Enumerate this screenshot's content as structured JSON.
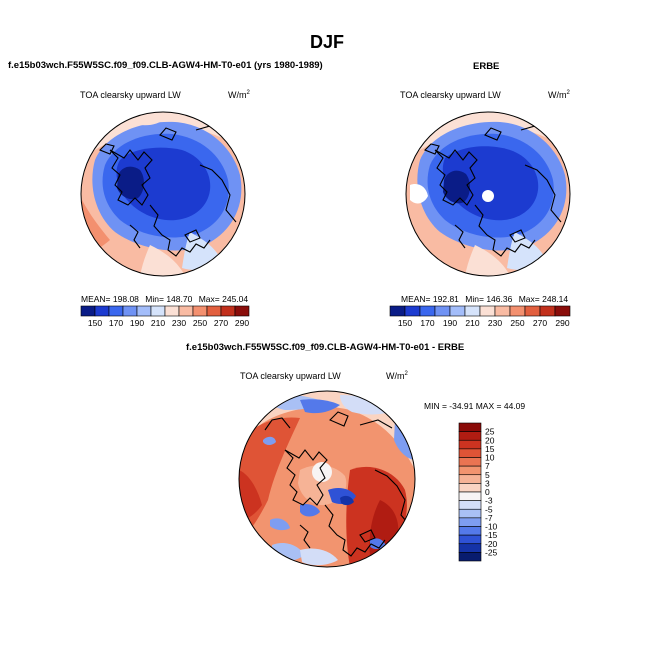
{
  "page": {
    "title": "DJF"
  },
  "chart_data": [
    {
      "type": "heatmap",
      "header": "f.e15b03wch.F55W5SC.f09_f09.CLB-AGW4-HM-T0-e01 (yrs 1980-1989)",
      "label_left": "TOA clearsky upward LW",
      "units": "W/m",
      "units_sup": "2",
      "stats": {
        "mean_label": "MEAN=",
        "mean": "198.08",
        "min_label": "Min=",
        "min": "148.70",
        "max_label": "Max=",
        "max": "245.04"
      },
      "colorbar": {
        "orientation": "horizontal",
        "tick_labels": [
          "150",
          "170",
          "190",
          "210",
          "230",
          "250",
          "270",
          "290"
        ],
        "colors": [
          "#0a1c87",
          "#1c3bd0",
          "#3a67ee",
          "#6f92f4",
          "#a3bdfa",
          "#d5e3fb",
          "#fbe0d5",
          "#f9bba3",
          "#f3906f",
          "#e25f3e",
          "#c2301c",
          "#8a0d0a"
        ]
      }
    },
    {
      "type": "heatmap",
      "header": "ERBE",
      "label_left": "TOA clearsky upward LW",
      "units": "W/m",
      "units_sup": "2",
      "stats": {
        "mean_label": "MEAN=",
        "mean": "192.81",
        "min_label": "Min=",
        "min": "146.36",
        "max_label": "Max=",
        "max": "248.14"
      },
      "colorbar": {
        "orientation": "horizontal",
        "tick_labels": [
          "150",
          "170",
          "190",
          "210",
          "230",
          "250",
          "270",
          "290"
        ],
        "colors": [
          "#0a1c87",
          "#1c3bd0",
          "#3a67ee",
          "#6f92f4",
          "#a3bdfa",
          "#d5e3fb",
          "#fbe0d5",
          "#f9bba3",
          "#f3906f",
          "#e25f3e",
          "#c2301c",
          "#8a0d0a"
        ]
      }
    },
    {
      "type": "heatmap",
      "header": "f.e15b03wch.F55W5SC.f09_f09.CLB-AGW4-HM-T0-e01 - ERBE",
      "label_left": "TOA clearsky upward LW",
      "units": "W/m",
      "units_sup": "2",
      "stats_text": "MIN = -34.91  MAX =  44.09",
      "colorbar": {
        "orientation": "vertical",
        "tick_labels": [
          "25",
          "20",
          "15",
          "10",
          "7",
          "5",
          "3",
          "0",
          "-3",
          "-5",
          "-7",
          "-10",
          "-15",
          "-20",
          "-25"
        ],
        "colors": [
          "#8a0a08",
          "#b01c12",
          "#cc3320",
          "#df5436",
          "#ea7452",
          "#f2946f",
          "#f6b396",
          "#fad4c2",
          "#f8f4f4",
          "#d3ddf7",
          "#a9c0f5",
          "#7e9df1",
          "#5479ea",
          "#2f52d6",
          "#1533a8",
          "#081c6e"
        ]
      }
    }
  ]
}
